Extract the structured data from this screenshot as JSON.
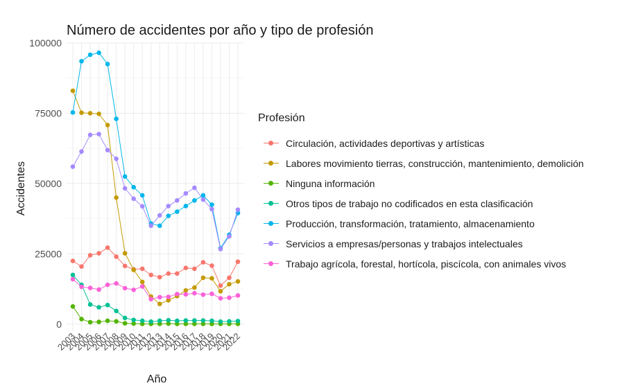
{
  "chart_data": {
    "type": "line",
    "title": "Número de accidentes por año y tipo de profesión",
    "xlabel": "Año",
    "ylabel": "Accidentes",
    "legend_title": "Profesión",
    "legend_position": "right",
    "grid": true,
    "ylim": [
      -2500,
      100000
    ],
    "yticks": [
      0,
      25000,
      50000,
      75000,
      100000
    ],
    "ytick_labels": [
      "0",
      "25000",
      "50000",
      "75000",
      "100000"
    ],
    "x": [
      "2003",
      "2004",
      "2005",
      "2006",
      "2007",
      "2008",
      "2009",
      "2010",
      "2011",
      "2012",
      "2013",
      "2014",
      "2015",
      "2016",
      "2017",
      "2018",
      "2019",
      "2020",
      "2021",
      "2022"
    ],
    "series": [
      {
        "name": "Circulación, actividades deportivas y artísticas",
        "color": "#F8766D",
        "values": [
          22500,
          20500,
          24500,
          25200,
          27200,
          24000,
          20700,
          19500,
          19700,
          17500,
          16700,
          18000,
          18000,
          20000,
          19700,
          22000,
          20800,
          13700,
          16500,
          22200
        ]
      },
      {
        "name": "Labores movimiento tierras, construcción, mantenimiento, demolición",
        "color": "#C49A00",
        "values": [
          83000,
          75200,
          75000,
          74800,
          70800,
          45000,
          25200,
          19300,
          15000,
          9800,
          7200,
          8500,
          10000,
          12000,
          13000,
          16500,
          16300,
          11700,
          14200,
          15200
        ]
      },
      {
        "name": "Ninguna información",
        "color": "#53B400",
        "values": [
          6300,
          1800,
          700,
          800,
          1200,
          1000,
          300,
          200,
          100,
          100,
          100,
          200,
          100,
          100,
          100,
          100,
          100,
          100,
          100,
          100
        ]
      },
      {
        "name": "Otros tipos de trabajo no codificados en esta clasificación",
        "color": "#00C094",
        "values": [
          17500,
          14000,
          7000,
          6000,
          6800,
          4700,
          2200,
          1500,
          1200,
          900,
          1200,
          1400,
          1200,
          1300,
          1300,
          1300,
          1200,
          900,
          1000,
          1100
        ]
      },
      {
        "name": "Producción, transformación, tratamiento, almacenamiento",
        "color": "#00B6EB",
        "values": [
          75300,
          93500,
          95800,
          96500,
          92500,
          73000,
          52500,
          48700,
          45800,
          35800,
          35000,
          38500,
          40000,
          42000,
          44000,
          45800,
          42500,
          27000,
          31800,
          39500
        ]
      },
      {
        "name": "Servicios a empresas/personas y trabajos intelectuales",
        "color": "#A58AFF",
        "values": [
          56000,
          61400,
          67300,
          67600,
          61900,
          58800,
          48300,
          44600,
          41900,
          35000,
          38700,
          42000,
          44000,
          46500,
          48500,
          44300,
          40900,
          26700,
          31200,
          40700
        ]
      },
      {
        "name": "Trabajo agrícola, forestal, hortícola, piscícola, con animales vivos",
        "color": "#FB61D7",
        "values": [
          16000,
          13300,
          12900,
          12300,
          14000,
          14500,
          12800,
          12200,
          13400,
          8900,
          9600,
          9700,
          10700,
          10600,
          11000,
          10500,
          10800,
          9200,
          9400,
          10200
        ]
      }
    ]
  }
}
